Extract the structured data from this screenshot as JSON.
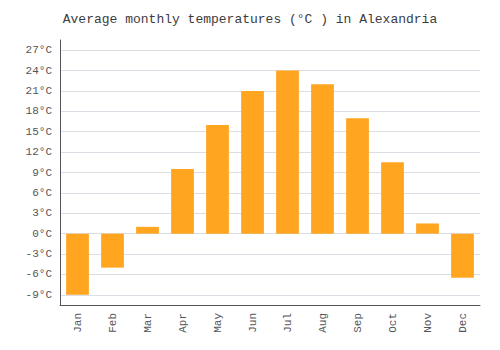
{
  "chart_data": {
    "type": "bar",
    "title": "Average monthly temperatures (°C ) in Alexandria",
    "categories": [
      "Jan",
      "Feb",
      "Mar",
      "Apr",
      "May",
      "Jun",
      "Jul",
      "Aug",
      "Sep",
      "Oct",
      "Nov",
      "Dec"
    ],
    "values": [
      -9,
      -5,
      1,
      9.5,
      16,
      21,
      24,
      22,
      17,
      10.5,
      1.5,
      -6.5
    ],
    "color": "#FFA520",
    "ylim": [
      -10.5,
      28.5
    ],
    "yticks": [
      {
        "value": -9,
        "label": "-9°C"
      },
      {
        "value": -6,
        "label": "-6°C"
      },
      {
        "value": -3,
        "label": "-3°C"
      },
      {
        "value": 0,
        "label": "0°C"
      },
      {
        "value": 3,
        "label": "3°C"
      },
      {
        "value": 6,
        "label": "6°C"
      },
      {
        "value": 9,
        "label": "9°C"
      },
      {
        "value": 12,
        "label": "12°C"
      },
      {
        "value": 15,
        "label": "15°C"
      },
      {
        "value": 18,
        "label": "18°C"
      },
      {
        "value": 21,
        "label": "21°C"
      },
      {
        "value": 24,
        "label": "24°C"
      },
      {
        "value": 27,
        "label": "27°C"
      }
    ],
    "grid": true
  }
}
